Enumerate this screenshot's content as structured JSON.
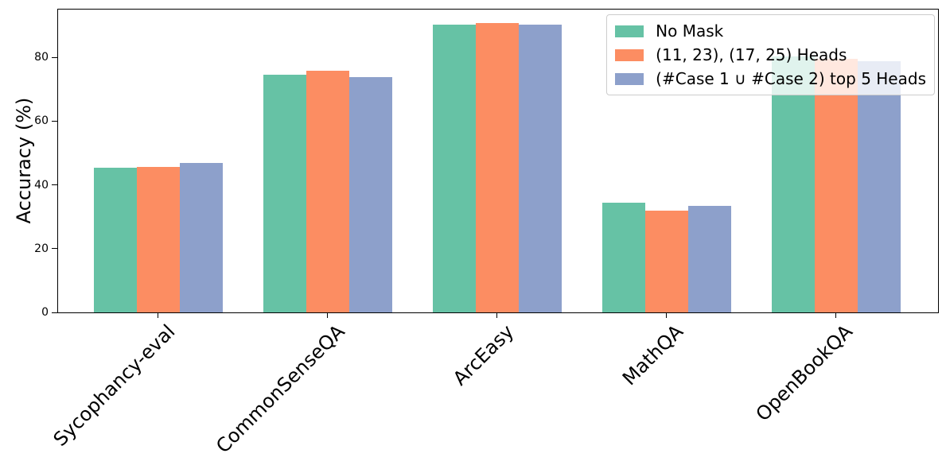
{
  "chart_data": {
    "type": "bar",
    "title": "",
    "xlabel": "",
    "ylabel": "Accuracy (%)",
    "ylim": [
      0,
      95
    ],
    "yticks": [
      0,
      20,
      40,
      60,
      80
    ],
    "grid": false,
    "legend_position": "upper right",
    "categories": [
      "Sycophancy-eval",
      "CommonSenseQA",
      "ArcEasy",
      "MathQA",
      "OpenBookQA"
    ],
    "series": [
      {
        "name": "No Mask",
        "color": "#66c2a5",
        "values": [
          45.5,
          74.5,
          90.3,
          34.5,
          80.2
        ]
      },
      {
        "name": "(11, 23), (17, 25) Heads",
        "color": "#fc8d62",
        "values": [
          45.7,
          75.8,
          90.7,
          31.8,
          79.6
        ]
      },
      {
        "name": "(#Case 1 ∪ #Case 2) top 5 Heads",
        "color": "#8da0cb",
        "values": [
          46.8,
          73.8,
          90.2,
          33.3,
          78.8
        ]
      }
    ]
  }
}
